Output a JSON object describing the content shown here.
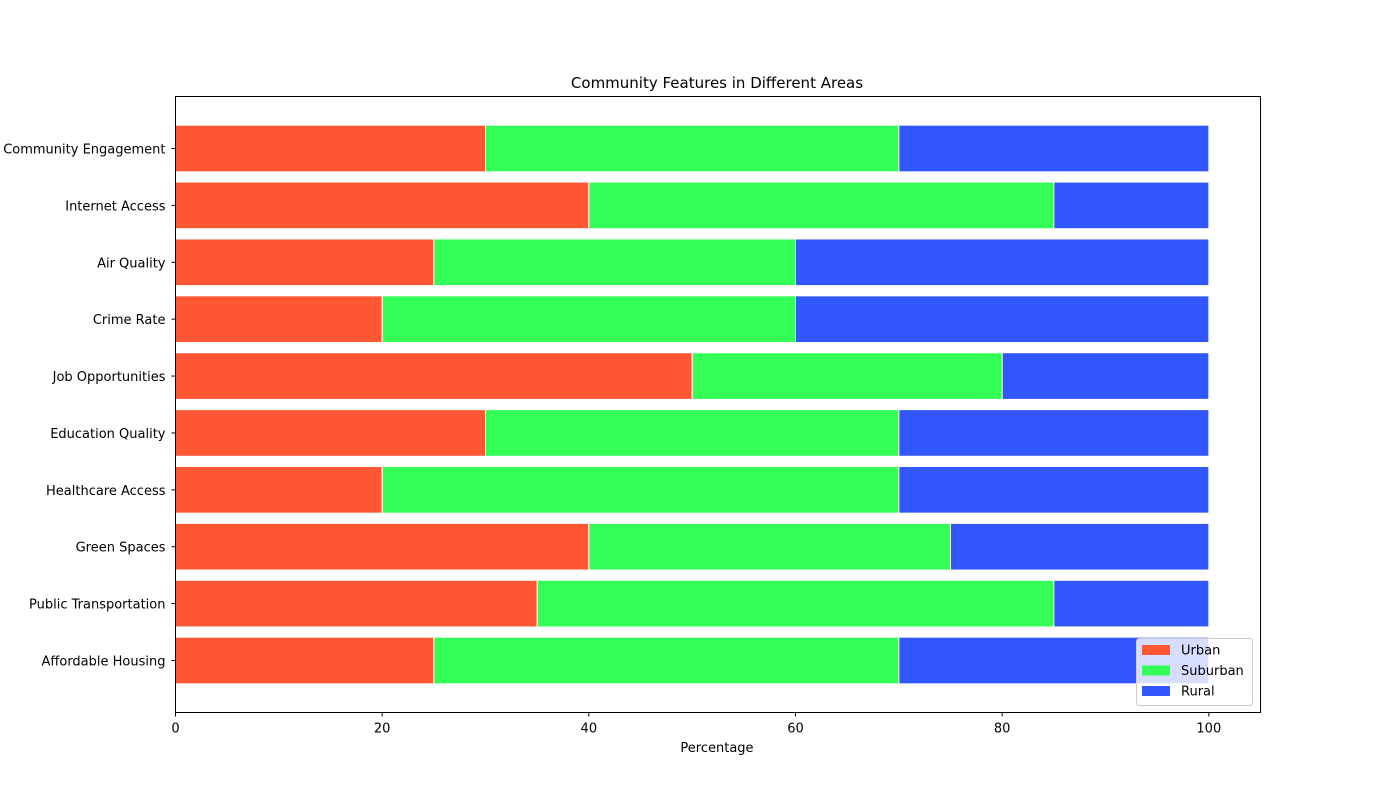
{
  "chart_data": {
    "type": "bar",
    "orientation": "horizontal",
    "stacked": true,
    "title": "Community Features in Different Areas",
    "xlabel": "Percentage",
    "ylabel": "",
    "xlim": [
      0,
      105
    ],
    "xticks": [
      0,
      20,
      40,
      60,
      80,
      100
    ],
    "grid": false,
    "legend_position": "lower-right",
    "categories": [
      "Affordable Housing",
      "Public Transportation",
      "Green Spaces",
      "Healthcare Access",
      "Education Quality",
      "Job Opportunities",
      "Crime Rate",
      "Air Quality",
      "Internet Access",
      "Community Engagement"
    ],
    "series": [
      {
        "name": "Urban",
        "color": "#ff5733",
        "values": [
          25,
          35,
          40,
          20,
          30,
          50,
          20,
          25,
          40,
          30
        ]
      },
      {
        "name": "Suburban",
        "color": "#33ff57",
        "values": [
          45,
          50,
          35,
          50,
          40,
          30,
          40,
          35,
          45,
          40
        ]
      },
      {
        "name": "Rural",
        "color": "#3357ff",
        "values": [
          30,
          15,
          25,
          30,
          30,
          20,
          40,
          40,
          15,
          30
        ]
      }
    ]
  }
}
